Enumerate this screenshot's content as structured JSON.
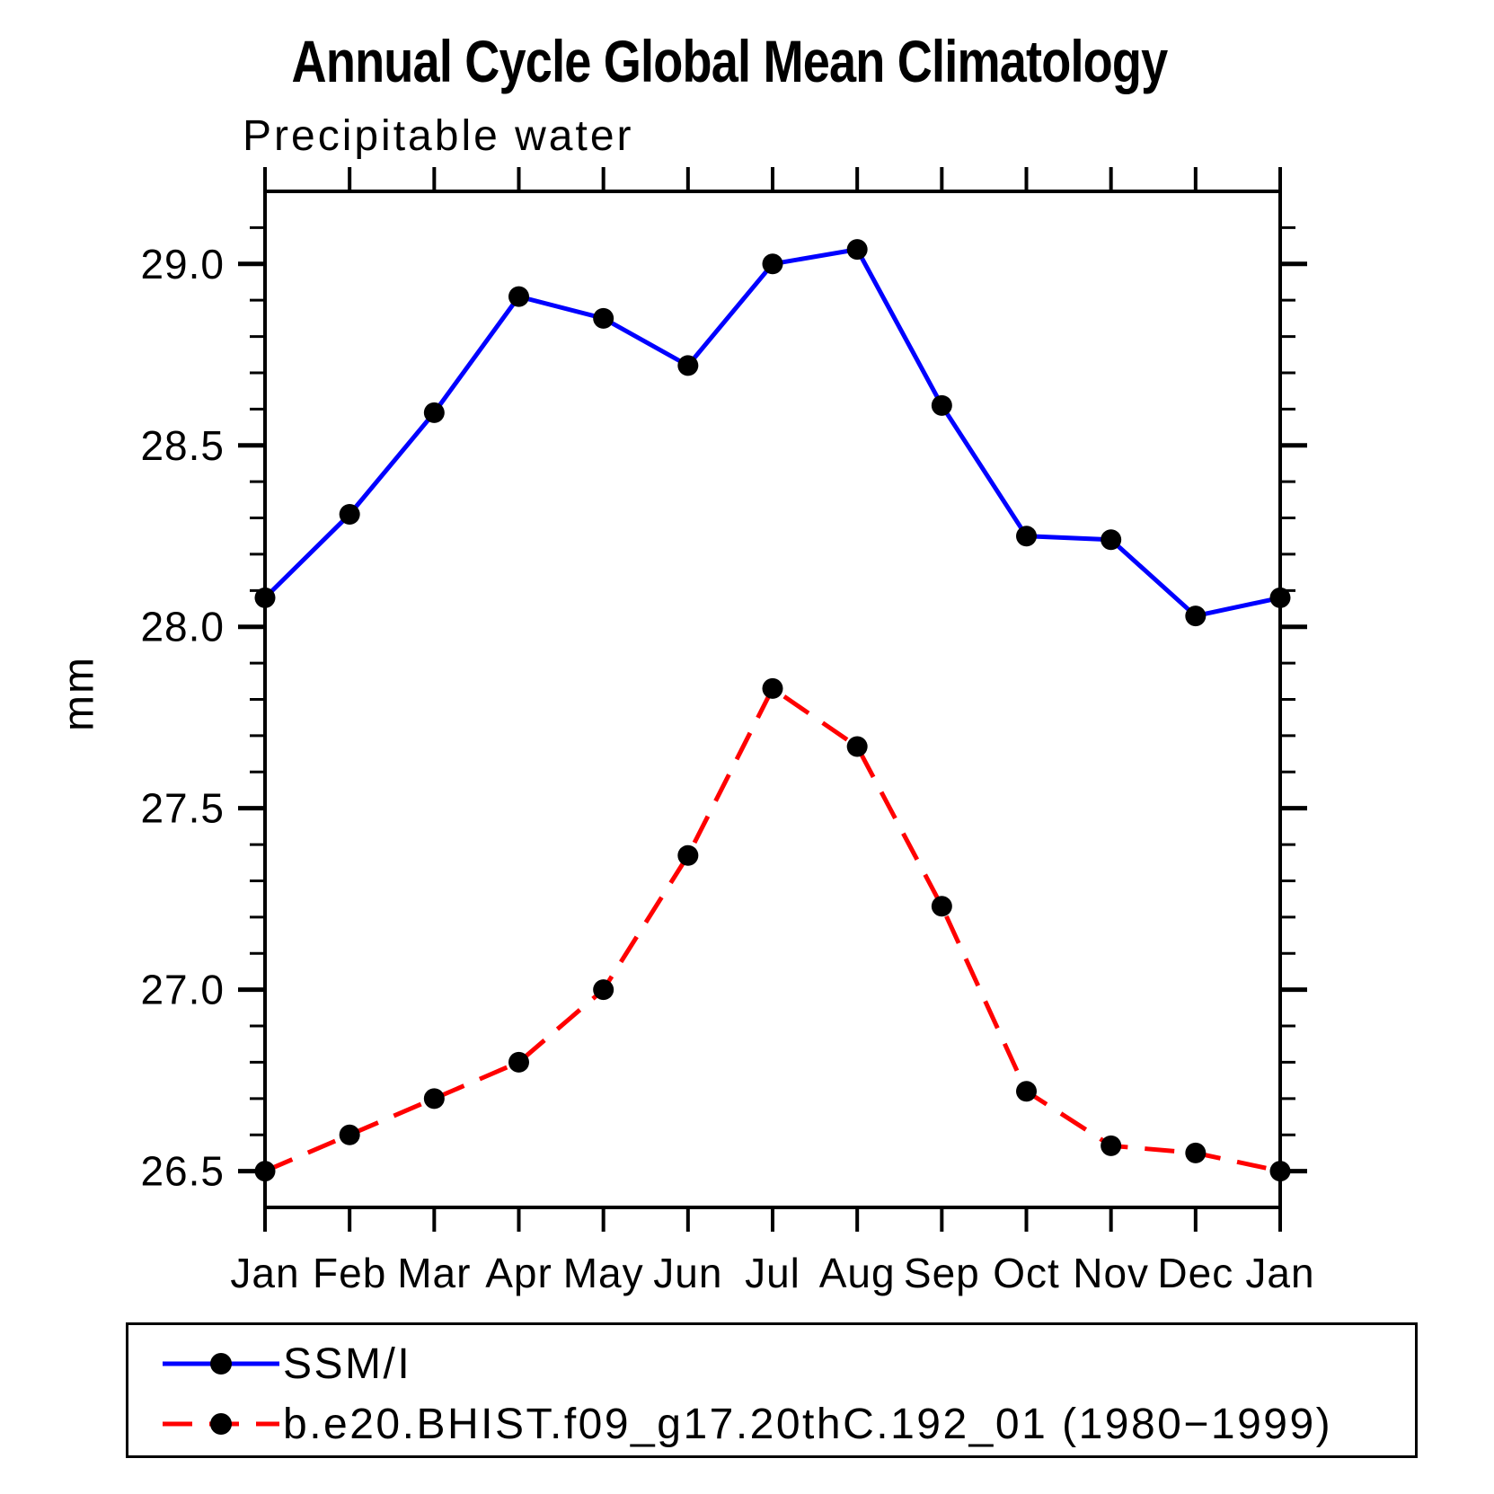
{
  "chart_data": {
    "type": "line",
    "title": "Annual Cycle Global Mean Climatology",
    "subtitle": "Precipitable water",
    "ylabel": "mm",
    "xlabel": "",
    "categories": [
      "Jan",
      "Feb",
      "Mar",
      "Apr",
      "May",
      "Jun",
      "Jul",
      "Aug",
      "Sep",
      "Oct",
      "Nov",
      "Dec",
      "Jan"
    ],
    "series": [
      {
        "name": "SSM/I",
        "color": "#0000ff",
        "line_style": "solid",
        "marker": "filled-circle",
        "marker_color": "#000000",
        "values": [
          28.08,
          28.31,
          28.59,
          28.91,
          28.85,
          28.72,
          29.0,
          29.04,
          28.61,
          28.25,
          28.24,
          28.03,
          28.08
        ]
      },
      {
        "name": "b.e20.BHIST.f09_g17.20thC.192_01 (1980−1999)",
        "color": "#ff0000",
        "line_style": "dashed",
        "marker": "filled-circle",
        "marker_color": "#000000",
        "values": [
          26.5,
          26.6,
          26.7,
          26.8,
          27.0,
          27.37,
          27.83,
          27.67,
          27.23,
          26.72,
          26.57,
          26.55,
          26.5
        ]
      }
    ],
    "ylim": [
      26.4,
      29.2
    ],
    "yticks_major": [
      26.5,
      27.0,
      27.5,
      28.0,
      28.5,
      29.0
    ],
    "ytick_minor_step": 0.1,
    "grid": false,
    "legend_position": "bottom-left-box"
  }
}
